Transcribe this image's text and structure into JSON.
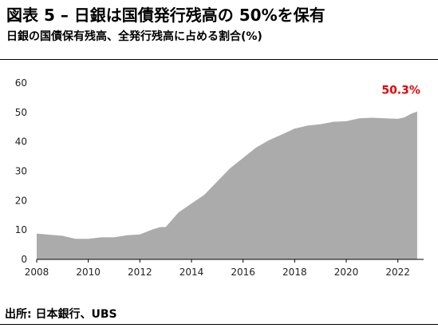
{
  "header": {
    "title": "図表 5 – 日銀は国債発行残高の 50%を保有",
    "subtitle": "日銀の国債保有残高、全発行残高に占める割合(%)"
  },
  "source": "出所: 日本銀行、UBS",
  "colors": {
    "area": "#ababab",
    "annotation": "#e60000",
    "axis": "#000000"
  },
  "chart_data": {
    "type": "area",
    "title": "",
    "xlabel": "",
    "ylabel": "",
    "xlim": [
      2008,
      2023
    ],
    "ylim": [
      0,
      60
    ],
    "yticks": [
      0,
      10,
      20,
      30,
      40,
      50,
      60
    ],
    "xticks": [
      2008,
      2010,
      2012,
      2014,
      2016,
      2018,
      2020,
      2022
    ],
    "grid": false,
    "legend": "none",
    "series": [
      {
        "x": [
          2008.0,
          2008.5,
          2009.0,
          2009.5,
          2010.0,
          2010.5,
          2011.0,
          2011.5,
          2012.0,
          2012.5,
          2012.8,
          2013.0,
          2013.25,
          2013.5,
          2014.0,
          2014.5,
          2015.0,
          2015.5,
          2016.0,
          2016.5,
          2017.0,
          2017.5,
          2018.0,
          2018.5,
          2019.0,
          2019.5,
          2020.0,
          2020.5,
          2021.0,
          2021.5,
          2022.0,
          2022.25,
          2022.5,
          2022.75
        ],
        "values": [
          8.8,
          8.4,
          8.0,
          7.0,
          7.0,
          7.5,
          7.5,
          8.2,
          8.5,
          10.2,
          11.0,
          11.0,
          13.5,
          16.0,
          19.0,
          22.0,
          26.5,
          31.0,
          34.5,
          38.0,
          40.5,
          42.5,
          44.5,
          45.5,
          46.0,
          46.8,
          47.0,
          48.0,
          48.2,
          48.0,
          47.8,
          48.3,
          49.5,
          50.3
        ]
      }
    ],
    "annotations": [
      {
        "text": "50.3%",
        "x": 2022.75,
        "y": 50.3
      }
    ]
  }
}
